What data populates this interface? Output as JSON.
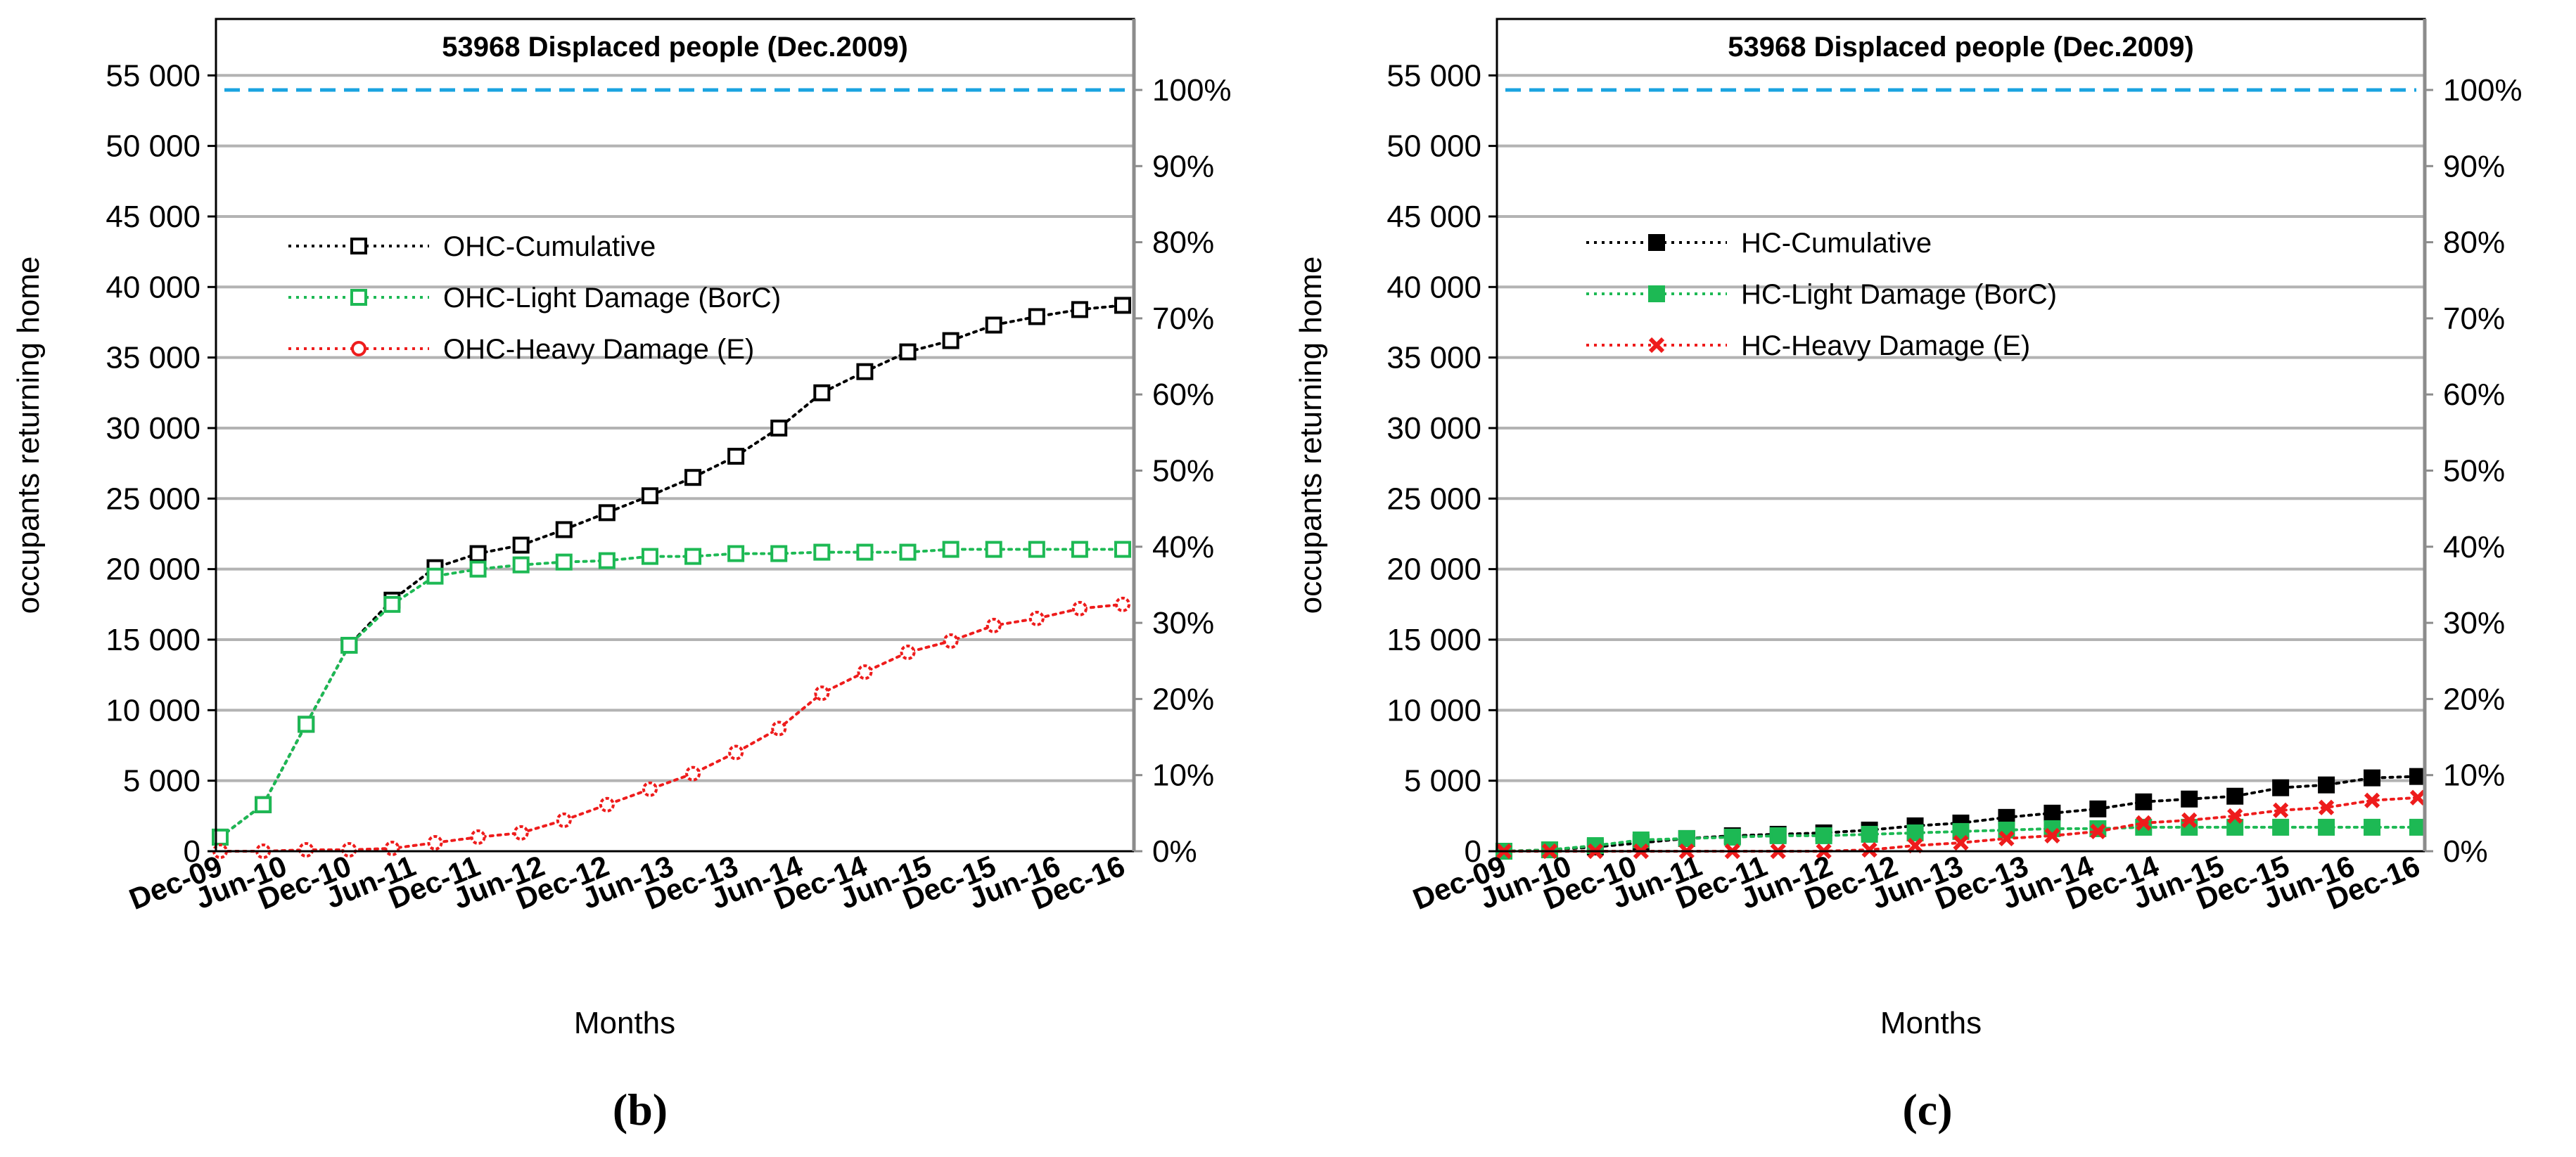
{
  "figure": {
    "colors": {
      "cumulative": "#000000",
      "light": "#1db954",
      "heavy": "#ee1c1c",
      "reference": "#1aa3e0",
      "grid": "#b3b3b3",
      "axis": "#8c8c8c"
    }
  },
  "chart_data": [
    {
      "type": "line",
      "panel_label": "(b)",
      "title": "53968 Displaced people (Dec.2009)",
      "ylabel": "occupants returning home",
      "xlabel": "Months",
      "ylim": [
        0,
        59000
      ],
      "yticks": [
        0,
        5000,
        10000,
        15000,
        20000,
        25000,
        30000,
        35000,
        40000,
        45000,
        50000,
        55000
      ],
      "ytick_labels": [
        "0",
        "5 000",
        "10 000",
        "15 000",
        "20 000",
        "25 000",
        "30 000",
        "35 000",
        "40 000",
        "45 000",
        "50 000",
        "55 000"
      ],
      "y2ticks": [
        0,
        10,
        20,
        30,
        40,
        50,
        60,
        70,
        80,
        90,
        100
      ],
      "y2tick_labels": [
        "0%",
        "10%",
        "20%",
        "30%",
        "40%",
        "50%",
        "60%",
        "70%",
        "80%",
        "90%",
        "100%"
      ],
      "y2_reference": 53968,
      "reference_line": 53968,
      "x_tick_labels": [
        "Dec-09",
        "Jun-10",
        "Dec-10",
        "Jun-11",
        "Dec-11",
        "Jun-12",
        "Dec-12",
        "Jun-13",
        "Dec-13",
        "Jun-14",
        "Dec-14",
        "Jun-15",
        "Dec-15",
        "Jun-16",
        "Dec-16"
      ],
      "marker": "open-square",
      "series": [
        {
          "name": "OHC-Cumulative",
          "key": "cumulative",
          "values": [
            1000,
            3300,
            9000,
            14600,
            17800,
            20100,
            21100,
            21700,
            22800,
            24000,
            25200,
            26500,
            28000,
            30000,
            32500,
            34000,
            35400,
            36200,
            37300,
            37900,
            38400,
            38700
          ]
        },
        {
          "name": "OHC-Light Damage (BorC)",
          "key": "light",
          "values": [
            1000,
            3300,
            9000,
            14600,
            17500,
            19500,
            20000,
            20300,
            20500,
            20600,
            20900,
            20900,
            21100,
            21100,
            21200,
            21200,
            21200,
            21400,
            21400,
            21400,
            21400,
            21400
          ]
        },
        {
          "name": "OHC-Heavy Damage (E)",
          "key": "heavy",
          "values": [
            0,
            0,
            100,
            100,
            200,
            600,
            1000,
            1300,
            2200,
            3300,
            4400,
            5500,
            7000,
            8700,
            11200,
            12700,
            14100,
            14900,
            16000,
            16500,
            17200,
            17500
          ]
        }
      ]
    },
    {
      "type": "line",
      "panel_label": "(c)",
      "title": "53968 Displaced people (Dec.2009)",
      "ylabel": "occupants returning home",
      "xlabel": "Months",
      "ylim": [
        0,
        59000
      ],
      "yticks": [
        0,
        5000,
        10000,
        15000,
        20000,
        25000,
        30000,
        35000,
        40000,
        45000,
        50000,
        55000
      ],
      "ytick_labels": [
        "0",
        "5 000",
        "10 000",
        "15 000",
        "20 000",
        "25 000",
        "30 000",
        "35 000",
        "40 000",
        "45 000",
        "50 000",
        "55 000"
      ],
      "y2ticks": [
        0,
        10,
        20,
        30,
        40,
        50,
        60,
        70,
        80,
        90,
        100
      ],
      "y2tick_labels": [
        "0%",
        "10%",
        "20%",
        "30%",
        "40%",
        "50%",
        "60%",
        "70%",
        "80%",
        "90%",
        "100%"
      ],
      "y2_reference": 53968,
      "reference_line": 53968,
      "x_tick_labels": [
        "Dec-09",
        "Jun-10",
        "Dec-10",
        "Jun-11",
        "Dec-11",
        "Jun-12",
        "Dec-12",
        "Jun-13",
        "Dec-13",
        "Jun-14",
        "Dec-14",
        "Jun-15",
        "Dec-15",
        "Jun-16",
        "Dec-16"
      ],
      "marker": "filled",
      "series": [
        {
          "name": "HC-Cumulative",
          "key": "cumulative",
          "values": [
            0,
            100,
            300,
            600,
            900,
            1100,
            1200,
            1300,
            1500,
            1800,
            2000,
            2400,
            2700,
            3000,
            3500,
            3700,
            3900,
            4500,
            4700,
            5200,
            5300
          ]
        },
        {
          "name": "HC-Light Damage (BorC)",
          "key": "light",
          "values": [
            0,
            100,
            400,
            800,
            900,
            1000,
            1100,
            1100,
            1200,
            1300,
            1400,
            1500,
            1600,
            1600,
            1700,
            1700,
            1700,
            1700,
            1700,
            1700,
            1700
          ]
        },
        {
          "name": "HC-Heavy Damage (E)",
          "key": "heavy",
          "values": [
            0,
            0,
            0,
            0,
            0,
            0,
            0,
            0,
            100,
            400,
            600,
            900,
            1100,
            1400,
            2000,
            2200,
            2500,
            2900,
            3100,
            3600,
            3800
          ]
        }
      ]
    }
  ]
}
